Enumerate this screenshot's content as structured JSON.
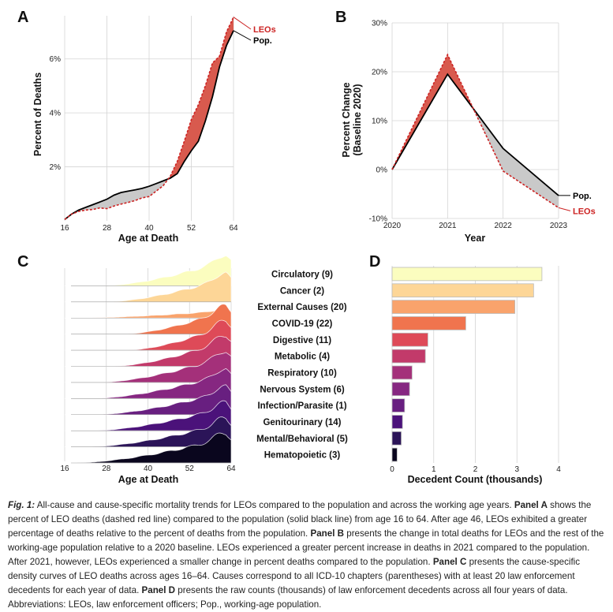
{
  "panels": {
    "a": {
      "letter": "A"
    },
    "b": {
      "letter": "B"
    },
    "c": {
      "letter": "C"
    },
    "d": {
      "letter": "D"
    }
  },
  "colors": {
    "leo": "#cc2222",
    "pop": "#000000",
    "leo_fill": "#d85a4e",
    "pop_fill": "#c9c9c9",
    "bar_outline": "#bbbbbb"
  },
  "chart_data": [
    {
      "id": "A",
      "type": "line",
      "title": "",
      "xlabel": "Age at Death",
      "ylabel": "Percent of Deaths",
      "xlim": [
        16,
        64
      ],
      "ylim": [
        0,
        7.6
      ],
      "x_ticks": [
        16,
        28,
        40,
        52,
        64
      ],
      "y_ticks": [
        {
          "v": 2,
          "label": "2%"
        },
        {
          "v": 4,
          "label": "4%"
        },
        {
          "v": 6,
          "label": "6%"
        }
      ],
      "series": [
        {
          "name": "LEOs",
          "label": "LEOs",
          "style": "dashed",
          "x": [
            16,
            18,
            20,
            22,
            24,
            26,
            28,
            30,
            32,
            34,
            36,
            38,
            40,
            42,
            44,
            46,
            48,
            50,
            52,
            54,
            56,
            58,
            60,
            62,
            64
          ],
          "y": [
            0.05,
            0.25,
            0.35,
            0.4,
            0.42,
            0.48,
            0.45,
            0.55,
            0.62,
            0.68,
            0.75,
            0.85,
            0.9,
            1.1,
            1.3,
            1.65,
            2.2,
            2.95,
            3.75,
            4.3,
            5.0,
            5.85,
            6.1,
            7.0,
            7.55
          ]
        },
        {
          "name": "Pop.",
          "label": "Pop.",
          "style": "solid",
          "x": [
            16,
            18,
            20,
            22,
            24,
            26,
            28,
            30,
            32,
            34,
            36,
            38,
            40,
            42,
            44,
            46,
            48,
            50,
            52,
            54,
            56,
            58,
            60,
            62,
            64
          ],
          "y": [
            0.05,
            0.25,
            0.4,
            0.5,
            0.6,
            0.7,
            0.8,
            0.95,
            1.05,
            1.1,
            1.15,
            1.2,
            1.28,
            1.38,
            1.48,
            1.58,
            1.75,
            2.2,
            2.6,
            2.95,
            3.7,
            4.6,
            5.7,
            6.5,
            7.05
          ]
        }
      ]
    },
    {
      "id": "B",
      "type": "line",
      "title": "",
      "xlabel": "Year",
      "ylabel_lines": [
        "Percent Change",
        "(Baseline 2020)"
      ],
      "ylim": [
        -10,
        30
      ],
      "x": [
        2020,
        2021,
        2022,
        2023
      ],
      "y_ticks": [
        {
          "v": 30,
          "label": "30%"
        },
        {
          "v": 20,
          "label": "20%"
        },
        {
          "v": 10,
          "label": "10%"
        },
        {
          "v": 0,
          "label": "0%"
        },
        {
          "v": -10,
          "label": "-10%"
        }
      ],
      "series": [
        {
          "name": "Pop.",
          "label": "Pop.",
          "style": "solid",
          "values": [
            0,
            19.5,
            4.3,
            -5.3
          ]
        },
        {
          "name": "LEOs",
          "label": "LEOs",
          "style": "dashed",
          "values": [
            0,
            23.5,
            -0.3,
            -7.8
          ]
        }
      ]
    },
    {
      "id": "C",
      "type": "area",
      "title": "",
      "xlabel": "Age at Death",
      "xlim": [
        16,
        64
      ],
      "x_ticks": [
        16,
        28,
        40,
        52,
        64
      ],
      "categories": [
        "Circulatory (9)",
        "Cancer (2)",
        "External Causes (20)",
        "COVID-19 (22)",
        "Digestive (11)",
        "Metabolic (4)",
        "Respiratory (10)",
        "Nervous System (6)",
        "Infection/Parasite (1)",
        "Genitourinary (14)",
        "Mental/Behavioral (5)",
        "Hematopoietic (3)"
      ],
      "colors": [
        "#fbfdbf",
        "#fdd697",
        "#f9a36c",
        "#f0744e",
        "#de4a58",
        "#c23a6a",
        "#a4307a",
        "#862781",
        "#681f80",
        "#4b127a",
        "#2b1458",
        "#0a061e"
      ],
      "density_age_ranges": [
        [
          27,
          64
        ],
        [
          28,
          64
        ],
        [
          19,
          64
        ],
        [
          33,
          64
        ],
        [
          34,
          64
        ],
        [
          30,
          64
        ],
        [
          26,
          64
        ],
        [
          24,
          64
        ],
        [
          25,
          64
        ],
        [
          24,
          64
        ],
        [
          23,
          64
        ],
        [
          19,
          64
        ]
      ]
    },
    {
      "id": "D",
      "type": "bar",
      "title": "",
      "xlabel": "Decedent Count (thousands)",
      "xlim": [
        0,
        4
      ],
      "x_ticks": [
        0,
        1,
        2,
        3,
        4
      ],
      "categories": [
        "Circulatory (9)",
        "Cancer (2)",
        "External Causes (20)",
        "COVID-19 (22)",
        "Digestive (11)",
        "Metabolic (4)",
        "Respiratory (10)",
        "Nervous System (6)",
        "Infection/Parasite (1)",
        "Genitourinary (14)",
        "Mental/Behavioral (5)",
        "Hematopoietic (3)"
      ],
      "values": [
        3.6,
        3.4,
        2.95,
        1.77,
        0.86,
        0.8,
        0.48,
        0.42,
        0.3,
        0.25,
        0.22,
        0.12
      ]
    }
  ],
  "caption": {
    "label": "Fig. 1:",
    "s1": " All-cause and cause-specific mortality trends for LEOs compared to the population and across the working age years. ",
    "pa": "Panel A",
    "s2": " shows the percent of LEO deaths (dashed red line) compared to the population (solid black line) from age 16 to 64. After age 46, LEOs exhibited a greater percentage of deaths relative to the percent of deaths from the population. ",
    "pb": "Panel B",
    "s3": " presents the change in total deaths for LEOs and the rest of the working-age population relative to a 2020 baseline. LEOs experienced a greater percent increase in deaths in 2021 compared to the population. After 2021, however, LEOs experienced a smaller change in percent deaths compared to the population. ",
    "pc": "Panel C",
    "s4": " presents the cause-specific density curves of LEO deaths across ages 16–64. Causes correspond to all ICD-10 chapters (parentheses) with at least 20 law enforcement decedents for each year of data. ",
    "pd": "Panel D",
    "s5": " presents the raw counts (thousands) of law enforcement decedents across all four years of data. Abbreviations: LEOs, law enforcement officers; Pop., working-age population."
  }
}
